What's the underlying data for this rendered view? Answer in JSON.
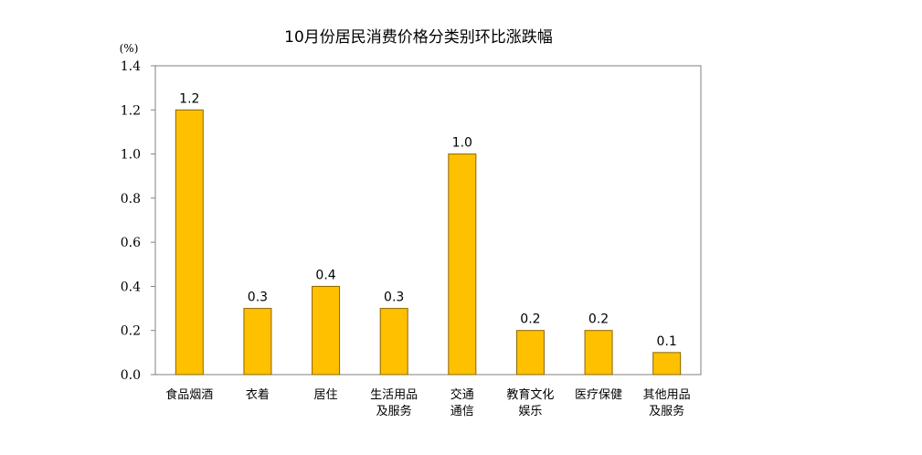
{
  "chart_data": {
    "type": "bar",
    "title": "10月份居民消费价格分类别环比涨跌幅",
    "unit": "(%)",
    "categories": [
      [
        "食品烟酒"
      ],
      [
        "衣着"
      ],
      [
        "居住"
      ],
      [
        "生活用品",
        "及服务"
      ],
      [
        "交通",
        "通信"
      ],
      [
        "教育文化",
        "娱乐"
      ],
      [
        "医疗保健"
      ],
      [
        "其他用品",
        "及服务"
      ]
    ],
    "values": [
      1.2,
      0.3,
      0.4,
      0.3,
      1.0,
      0.2,
      0.2,
      0.1
    ],
    "value_labels": [
      "1.2",
      "0.3",
      "0.4",
      "0.3",
      "1.0",
      "0.2",
      "0.2",
      "0.1"
    ],
    "yticks": [
      "0.0",
      "0.2",
      "0.4",
      "0.6",
      "0.8",
      "1.0",
      "1.2",
      "1.4"
    ],
    "ylim": [
      0,
      1.4
    ],
    "grid": false,
    "bar_color": "#FFC000",
    "bar_edge_color": "#8A6500"
  }
}
